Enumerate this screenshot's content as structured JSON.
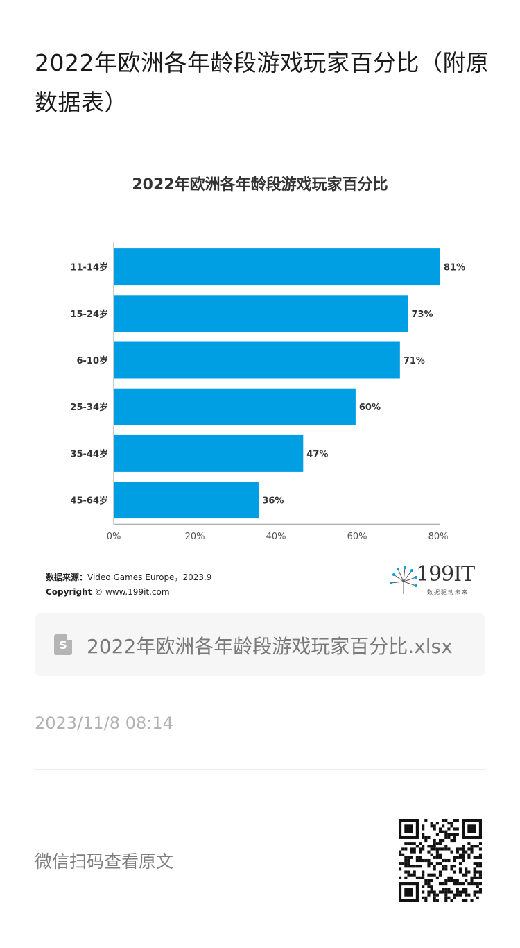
{
  "page": {
    "title": "2022年欧洲各年龄段游戏玩家百分比（附原数据表）"
  },
  "chart_data": {
    "type": "bar",
    "orientation": "horizontal",
    "title": "2022年欧洲各年龄段游戏玩家百分比",
    "categories": [
      "11-14岁",
      "15-24岁",
      "6-10岁",
      "25-34岁",
      "35-44岁",
      "45-64岁"
    ],
    "values": [
      81,
      73,
      71,
      60,
      47,
      36
    ],
    "value_labels": [
      "81%",
      "73%",
      "71%",
      "60%",
      "47%",
      "36%"
    ],
    "x_ticks": [
      "0%",
      "20%",
      "40%",
      "60%",
      "80%"
    ],
    "xlim": [
      0,
      81
    ],
    "grid": false,
    "bar_color": "#009ee3"
  },
  "chart_footer": {
    "source_label": "数据来源：",
    "source_value": "Video Games Europe，2023.9",
    "copyright_label": "Copyright",
    "copyright_value": "© www.199it.com",
    "logo_text": "199IT",
    "logo_sub": "数据驱动未来"
  },
  "attachment": {
    "icon": "spreadsheet-file-icon",
    "icon_letter": "S",
    "filename": "2022年欧洲各年龄段游戏玩家百分比.xlsx"
  },
  "meta": {
    "timestamp": "2023/11/8 08:14"
  },
  "footer": {
    "qr_label": "微信扫码查看原文",
    "qr_icon": "qr-code-icon"
  }
}
